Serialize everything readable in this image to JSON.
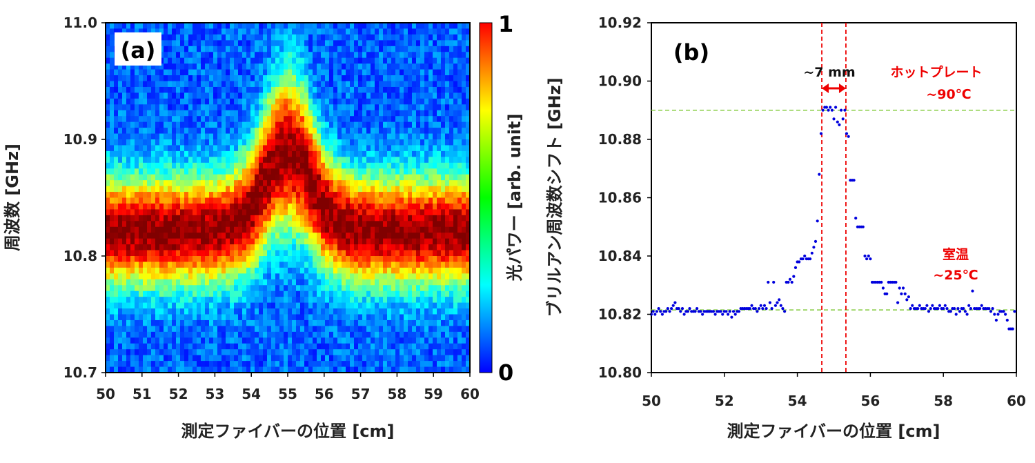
{
  "chart_data": [
    {
      "type": "heatmap",
      "panel_label": "(a)",
      "xlabel": "測定ファイバーの位置 [cm]",
      "ylabel": "周波数 [GHz]",
      "xlim": [
        50,
        60
      ],
      "ylim": [
        10.7,
        11.0
      ],
      "x_ticks": [
        "50",
        "51",
        "52",
        "53",
        "54",
        "55",
        "56",
        "57",
        "58",
        "59",
        "60"
      ],
      "y_ticks": [
        "10.7",
        "10.8",
        "10.9",
        "11.0"
      ],
      "colorbar": {
        "label": "光パワー [arb. unit]",
        "min_label": "0",
        "max_label": "1",
        "colormap": "jet"
      },
      "peak_frequency_profile": {
        "position_cm": [
          50,
          52,
          53,
          53.5,
          54,
          54.3,
          54.6,
          55,
          55.4,
          55.7,
          56,
          56.5,
          57,
          58,
          60
        ],
        "frequency_ghz": [
          10.821,
          10.821,
          10.822,
          10.826,
          10.84,
          10.86,
          10.88,
          10.89,
          10.88,
          10.86,
          10.84,
          10.826,
          10.822,
          10.821,
          10.821
        ]
      }
    },
    {
      "type": "scatter",
      "panel_label": "(b)",
      "xlabel": "測定ファイバーの位置 [cm]",
      "ylabel": "ブリルアン周波数シフト [GHz]",
      "xlim": [
        50,
        60
      ],
      "ylim": [
        10.8,
        10.92
      ],
      "x_ticks": [
        "50",
        "52",
        "54",
        "56",
        "58",
        "60"
      ],
      "y_ticks": [
        "10.80",
        "10.82",
        "10.84",
        "10.86",
        "10.88",
        "10.90",
        "10.92"
      ],
      "marker_color": "#0000dd",
      "points": [
        [
          50.0,
          10.82
        ],
        [
          50.05,
          10.821
        ],
        [
          50.1,
          10.82
        ],
        [
          50.15,
          10.821
        ],
        [
          50.2,
          10.822
        ],
        [
          50.25,
          10.821
        ],
        [
          50.3,
          10.82
        ],
        [
          50.35,
          10.821
        ],
        [
          50.4,
          10.821
        ],
        [
          50.45,
          10.822
        ],
        [
          50.5,
          10.821
        ],
        [
          50.55,
          10.822
        ],
        [
          50.6,
          10.823
        ],
        [
          50.65,
          10.824
        ],
        [
          50.7,
          10.822
        ],
        [
          50.75,
          10.822
        ],
        [
          50.8,
          10.821
        ],
        [
          50.85,
          10.822
        ],
        [
          50.9,
          10.82
        ],
        [
          50.95,
          10.821
        ],
        [
          51.0,
          10.821
        ],
        [
          51.05,
          10.822
        ],
        [
          51.1,
          10.821
        ],
        [
          51.15,
          10.821
        ],
        [
          51.2,
          10.821
        ],
        [
          51.25,
          10.822
        ],
        [
          51.3,
          10.821
        ],
        [
          51.35,
          10.821
        ],
        [
          51.4,
          10.82
        ],
        [
          51.45,
          10.821
        ],
        [
          51.5,
          10.821
        ],
        [
          51.55,
          10.821
        ],
        [
          51.6,
          10.821
        ],
        [
          51.65,
          10.821
        ],
        [
          51.7,
          10.821
        ],
        [
          51.75,
          10.82
        ],
        [
          51.8,
          10.821
        ],
        [
          51.85,
          10.821
        ],
        [
          51.9,
          10.821
        ],
        [
          51.95,
          10.82
        ],
        [
          52.0,
          10.821
        ],
        [
          52.05,
          10.821
        ],
        [
          52.1,
          10.82
        ],
        [
          52.15,
          10.821
        ],
        [
          52.2,
          10.819
        ],
        [
          52.25,
          10.821
        ],
        [
          52.3,
          10.82
        ],
        [
          52.35,
          10.821
        ],
        [
          52.4,
          10.821
        ],
        [
          52.45,
          10.822
        ],
        [
          52.5,
          10.822
        ],
        [
          52.55,
          10.822
        ],
        [
          52.6,
          10.822
        ],
        [
          52.65,
          10.822
        ],
        [
          52.7,
          10.822
        ],
        [
          52.75,
          10.823
        ],
        [
          52.8,
          10.822
        ],
        [
          52.85,
          10.822
        ],
        [
          52.9,
          10.821
        ],
        [
          52.95,
          10.822
        ],
        [
          53.0,
          10.823
        ],
        [
          53.05,
          10.822
        ],
        [
          53.1,
          10.823
        ],
        [
          53.15,
          10.822
        ],
        [
          53.2,
          10.831
        ],
        [
          53.25,
          10.824
        ],
        [
          53.3,
          10.822
        ],
        [
          53.35,
          10.831
        ],
        [
          53.4,
          10.823
        ],
        [
          53.45,
          10.824
        ],
        [
          53.5,
          10.825
        ],
        [
          53.55,
          10.823
        ],
        [
          53.6,
          10.822
        ],
        [
          53.65,
          10.821
        ],
        [
          53.7,
          10.831
        ],
        [
          53.75,
          10.831
        ],
        [
          53.8,
          10.832
        ],
        [
          53.85,
          10.831
        ],
        [
          53.9,
          10.833
        ],
        [
          53.95,
          10.836
        ],
        [
          54.0,
          10.838
        ],
        [
          54.05,
          10.838
        ],
        [
          54.1,
          10.839
        ],
        [
          54.15,
          10.839
        ],
        [
          54.2,
          10.84
        ],
        [
          54.25,
          10.839
        ],
        [
          54.3,
          10.839
        ],
        [
          54.35,
          10.839
        ],
        [
          54.4,
          10.841
        ],
        [
          54.45,
          10.843
        ],
        [
          54.5,
          10.845
        ],
        [
          54.55,
          10.852
        ],
        [
          54.6,
          10.868
        ],
        [
          54.65,
          10.882
        ],
        [
          54.7,
          10.89
        ],
        [
          54.75,
          10.891
        ],
        [
          54.8,
          10.891
        ],
        [
          54.85,
          10.89
        ],
        [
          54.9,
          10.891
        ],
        [
          54.95,
          10.89
        ],
        [
          55.0,
          10.887
        ],
        [
          55.05,
          10.891
        ],
        [
          55.1,
          10.886
        ],
        [
          55.15,
          10.885
        ],
        [
          55.2,
          10.89
        ],
        [
          55.25,
          10.887
        ],
        [
          55.3,
          10.89
        ],
        [
          55.35,
          10.882
        ],
        [
          55.4,
          10.881
        ],
        [
          55.45,
          10.866
        ],
        [
          55.5,
          10.866
        ],
        [
          55.55,
          10.866
        ],
        [
          55.6,
          10.853
        ],
        [
          55.65,
          10.85
        ],
        [
          55.7,
          10.85
        ],
        [
          55.75,
          10.85
        ],
        [
          55.8,
          10.85
        ],
        [
          55.85,
          10.84
        ],
        [
          55.9,
          10.839
        ],
        [
          55.95,
          10.84
        ],
        [
          56.0,
          10.839
        ],
        [
          56.05,
          10.831
        ],
        [
          56.1,
          10.831
        ],
        [
          56.15,
          10.831
        ],
        [
          56.2,
          10.831
        ],
        [
          56.25,
          10.831
        ],
        [
          56.3,
          10.831
        ],
        [
          56.35,
          10.829
        ],
        [
          56.4,
          10.827
        ],
        [
          56.45,
          10.827
        ],
        [
          56.5,
          10.831
        ],
        [
          56.55,
          10.831
        ],
        [
          56.6,
          10.831
        ],
        [
          56.65,
          10.831
        ],
        [
          56.7,
          10.831
        ],
        [
          56.75,
          10.824
        ],
        [
          56.8,
          10.829
        ],
        [
          56.85,
          10.827
        ],
        [
          56.9,
          10.829
        ],
        [
          56.95,
          10.827
        ],
        [
          57.0,
          10.825
        ],
        [
          57.05,
          10.826
        ],
        [
          57.1,
          10.822
        ],
        [
          57.15,
          10.823
        ],
        [
          57.2,
          10.822
        ],
        [
          57.25,
          10.822
        ],
        [
          57.3,
          10.822
        ],
        [
          57.35,
          10.823
        ],
        [
          57.4,
          10.822
        ],
        [
          57.45,
          10.822
        ],
        [
          57.5,
          10.822
        ],
        [
          57.55,
          10.823
        ],
        [
          57.6,
          10.821
        ],
        [
          57.65,
          10.822
        ],
        [
          57.7,
          10.823
        ],
        [
          57.75,
          10.822
        ],
        [
          57.8,
          10.822
        ],
        [
          57.85,
          10.822
        ],
        [
          57.9,
          10.823
        ],
        [
          57.95,
          10.822
        ],
        [
          58.0,
          10.822
        ],
        [
          58.05,
          10.823
        ],
        [
          58.1,
          10.822
        ],
        [
          58.15,
          10.821
        ],
        [
          58.2,
          10.821
        ],
        [
          58.25,
          10.822
        ],
        [
          58.3,
          10.822
        ],
        [
          58.35,
          10.82
        ],
        [
          58.4,
          10.822
        ],
        [
          58.45,
          10.821
        ],
        [
          58.5,
          10.822
        ],
        [
          58.55,
          10.822
        ],
        [
          58.6,
          10.821
        ],
        [
          58.65,
          10.82
        ],
        [
          58.7,
          10.823
        ],
        [
          58.75,
          10.822
        ],
        [
          58.8,
          10.828
        ],
        [
          58.85,
          10.822
        ],
        [
          58.9,
          10.822
        ],
        [
          58.95,
          10.822
        ],
        [
          59.0,
          10.822
        ],
        [
          59.05,
          10.823
        ],
        [
          59.1,
          10.822
        ],
        [
          59.15,
          10.822
        ],
        [
          59.2,
          10.822
        ],
        [
          59.25,
          10.822
        ],
        [
          59.3,
          10.821
        ],
        [
          59.35,
          10.822
        ],
        [
          59.4,
          10.82
        ],
        [
          59.45,
          10.818
        ],
        [
          59.5,
          10.82
        ],
        [
          59.55,
          10.821
        ],
        [
          59.6,
          10.821
        ],
        [
          59.65,
          10.821
        ],
        [
          59.7,
          10.82
        ],
        [
          59.75,
          10.818
        ],
        [
          59.8,
          10.815
        ],
        [
          59.85,
          10.815
        ],
        [
          59.9,
          10.815
        ],
        [
          59.95,
          10.821
        ]
      ],
      "vertical_lines_cm": [
        54.67,
        55.33
      ],
      "horizontal_lines_ghz": [
        10.89,
        10.8215
      ],
      "annotations": {
        "width_label": "~7 mm",
        "hot_label": "ホットプレート",
        "hot_temp": "~90℃",
        "room_label": "室温",
        "room_temp": "~25℃"
      },
      "colors": {
        "annotation": "#ee0000",
        "vline": "#ee0000",
        "hline": "#88cc44"
      }
    }
  ]
}
